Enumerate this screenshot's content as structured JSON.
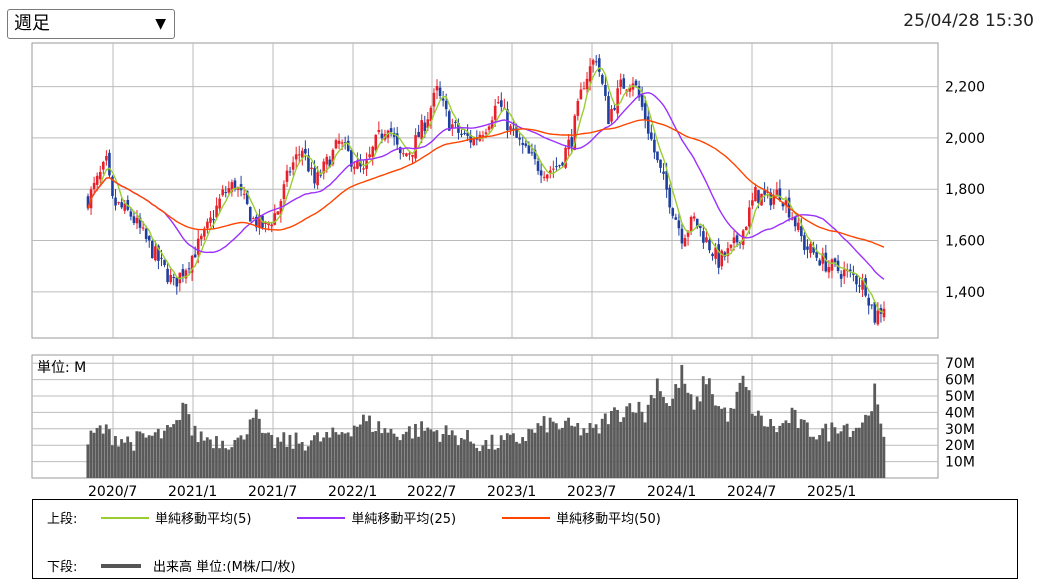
{
  "header": {
    "period_select": "週足",
    "timestamp": "25/04/28 15:30"
  },
  "legend": {
    "upper_label": "上段:",
    "lower_label": "下段:",
    "items": [
      {
        "label": "単純移動平均(5)",
        "color": "#9acd32"
      },
      {
        "label": "単純移動平均(25)",
        "color": "#9b30ff"
      },
      {
        "label": "単純移動平均(50)",
        "color": "#ff4500"
      }
    ],
    "volume_label": "出来高 単位:(M株/口/枚)"
  },
  "chart_data": [
    {
      "type": "candlestick",
      "x": [
        "2020/7",
        "2021/1",
        "2021/7",
        "2022/1",
        "2022/7",
        "2023/1",
        "2023/7",
        "2024/1",
        "2024/7",
        "2025/1"
      ],
      "yticks": [
        "2,200",
        "2,000",
        "1,800",
        "1,600",
        "1,400"
      ],
      "ylim": [
        1220,
        2370
      ],
      "up_color": "#e8202a",
      "down_color": "#1f3f9e",
      "price_path": [
        [
          0,
          1760
        ],
        [
          6,
          1900
        ],
        [
          8,
          1750
        ],
        [
          14,
          1700
        ],
        [
          20,
          1580
        ],
        [
          28,
          1430
        ],
        [
          32,
          1500
        ],
        [
          38,
          1620
        ],
        [
          44,
          1780
        ],
        [
          48,
          1820
        ],
        [
          54,
          1680
        ],
        [
          58,
          1650
        ],
        [
          62,
          1720
        ],
        [
          66,
          1880
        ],
        [
          70,
          1960
        ],
        [
          74,
          1820
        ],
        [
          78,
          1900
        ],
        [
          82,
          1980
        ],
        [
          86,
          1920
        ],
        [
          90,
          1860
        ],
        [
          94,
          1980
        ],
        [
          98,
          2060
        ],
        [
          102,
          1920
        ],
        [
          106,
          1960
        ],
        [
          110,
          2060
        ],
        [
          114,
          2180
        ],
        [
          118,
          2060
        ],
        [
          122,
          2010
        ],
        [
          126,
          1990
        ],
        [
          130,
          2050
        ],
        [
          134,
          2140
        ],
        [
          138,
          2030
        ],
        [
          142,
          1960
        ],
        [
          146,
          1900
        ],
        [
          150,
          1870
        ],
        [
          154,
          1900
        ],
        [
          158,
          2000
        ],
        [
          162,
          2220
        ],
        [
          166,
          2320
        ],
        [
          170,
          2080
        ],
        [
          174,
          2200
        ],
        [
          178,
          2230
        ],
        [
          182,
          2080
        ],
        [
          186,
          1900
        ],
        [
          190,
          1760
        ],
        [
          194,
          1620
        ],
        [
          198,
          1680
        ],
        [
          202,
          1600
        ],
        [
          206,
          1520
        ],
        [
          210,
          1560
        ],
        [
          214,
          1640
        ],
        [
          218,
          1780
        ],
        [
          222,
          1760
        ],
        [
          226,
          1790
        ],
        [
          230,
          1700
        ],
        [
          234,
          1580
        ],
        [
          238,
          1540
        ],
        [
          242,
          1500
        ],
        [
          246,
          1480
        ],
        [
          250,
          1460
        ],
        [
          254,
          1420
        ],
        [
          257,
          1300
        ],
        [
          260,
          1350
        ]
      ],
      "ma_periods": [
        5,
        25,
        50
      ],
      "note": ""
    },
    {
      "type": "bar",
      "title": "単位: M",
      "yticks": [
        "70M",
        "60M",
        "50M",
        "40M",
        "30M",
        "20M",
        "10M"
      ],
      "ylim": [
        0,
        75
      ],
      "color": "#5a5a5a",
      "volume_path": [
        [
          0,
          22
        ],
        [
          4,
          30
        ],
        [
          8,
          26
        ],
        [
          14,
          22
        ],
        [
          20,
          25
        ],
        [
          26,
          27
        ],
        [
          30,
          33
        ],
        [
          32,
          50
        ],
        [
          34,
          27
        ],
        [
          40,
          24
        ],
        [
          50,
          22
        ],
        [
          54,
          42
        ],
        [
          58,
          22
        ],
        [
          70,
          22
        ],
        [
          80,
          25
        ],
        [
          90,
          35
        ],
        [
          100,
          27
        ],
        [
          110,
          30
        ],
        [
          120,
          26
        ],
        [
          130,
          20
        ],
        [
          140,
          23
        ],
        [
          150,
          33
        ],
        [
          160,
          30
        ],
        [
          166,
          28
        ],
        [
          170,
          38
        ],
        [
          174,
          40
        ],
        [
          178,
          46
        ],
        [
          182,
          38
        ],
        [
          186,
          60
        ],
        [
          190,
          43
        ],
        [
          194,
          64
        ],
        [
          198,
          40
        ],
        [
          202,
          62
        ],
        [
          206,
          43
        ],
        [
          210,
          38
        ],
        [
          214,
          60
        ],
        [
          218,
          38
        ],
        [
          222,
          33
        ],
        [
          226,
          30
        ],
        [
          230,
          38
        ],
        [
          234,
          30
        ],
        [
          238,
          28
        ],
        [
          242,
          28
        ],
        [
          246,
          34
        ],
        [
          250,
          30
        ],
        [
          254,
          36
        ],
        [
          257,
          52
        ],
        [
          260,
          20
        ]
      ]
    }
  ]
}
